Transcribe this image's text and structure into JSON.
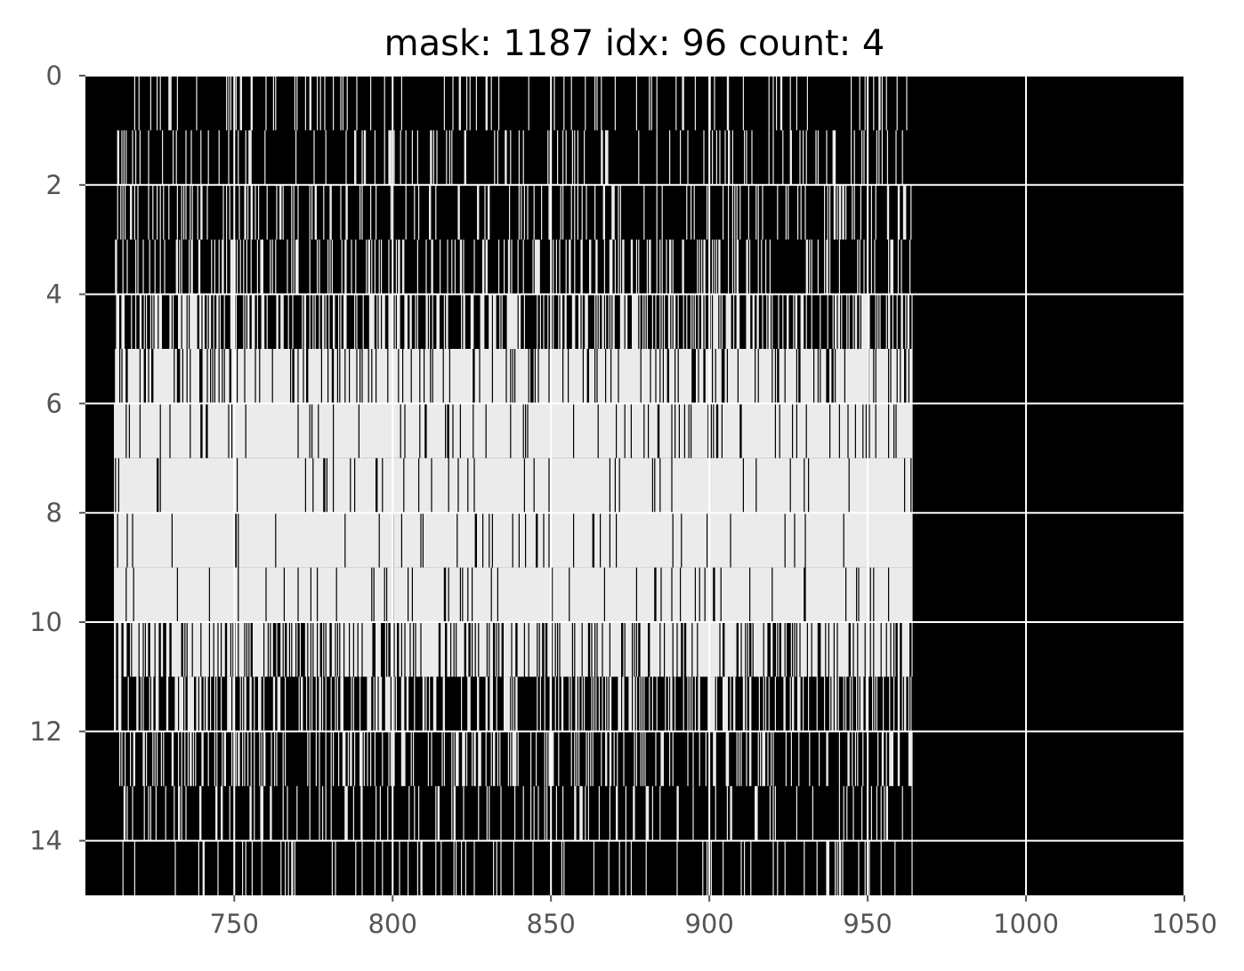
{
  "chart_data": {
    "type": "heatmap",
    "title": "mask: 1187 idx: 96 count: 4",
    "xlabel": "",
    "ylabel": "",
    "xlim": [
      703,
      1050
    ],
    "ylim": [
      15,
      0
    ],
    "y_inverted": true,
    "grid": true,
    "colormap": "gray",
    "x_ticks": [
      750,
      800,
      850,
      900,
      950,
      1000,
      1050
    ],
    "x_tick_labels": [
      "750",
      "800",
      "850",
      "900",
      "950",
      "1000",
      "1050"
    ],
    "y_ticks": [
      0,
      2,
      4,
      6,
      8,
      10,
      12,
      14
    ],
    "y_tick_labels": [
      "0",
      "2",
      "4",
      "6",
      "8",
      "10",
      "12",
      "14"
    ],
    "data_extent_x": [
      712,
      964
    ],
    "rows": [
      {
        "row": 0,
        "x_start": 712,
        "x_end": 964,
        "density": 0.1
      },
      {
        "row": 1,
        "x_start": 712,
        "x_end": 964,
        "density": 0.14
      },
      {
        "row": 2,
        "x_start": 712,
        "x_end": 964,
        "density": 0.2
      },
      {
        "row": 3,
        "x_start": 712,
        "x_end": 964,
        "density": 0.28
      },
      {
        "row": 4,
        "x_start": 712,
        "x_end": 964,
        "density": 0.42
      },
      {
        "row": 5,
        "x_start": 712,
        "x_end": 964,
        "density": 0.8
      },
      {
        "row": 6,
        "x_start": 712,
        "x_end": 964,
        "density": 0.94
      },
      {
        "row": 7,
        "x_start": 712,
        "x_end": 964,
        "density": 0.98
      },
      {
        "row": 8,
        "x_start": 712,
        "x_end": 964,
        "density": 0.99
      },
      {
        "row": 9,
        "x_start": 712,
        "x_end": 964,
        "density": 0.97
      },
      {
        "row": 10,
        "x_start": 712,
        "x_end": 964,
        "density": 0.72
      },
      {
        "row": 11,
        "x_start": 712,
        "x_end": 964,
        "density": 0.36
      },
      {
        "row": 12,
        "x_start": 712,
        "x_end": 964,
        "density": 0.26
      },
      {
        "row": 13,
        "x_start": 712,
        "x_end": 964,
        "density": 0.14
      },
      {
        "row": 14,
        "x_start": 712,
        "x_end": 964,
        "density": 0.1
      }
    ],
    "colors": {
      "background": "#000000",
      "foreground": "#ffffff",
      "grid": "#ffffff",
      "tick_label": "#555555",
      "title": "#000000"
    }
  }
}
